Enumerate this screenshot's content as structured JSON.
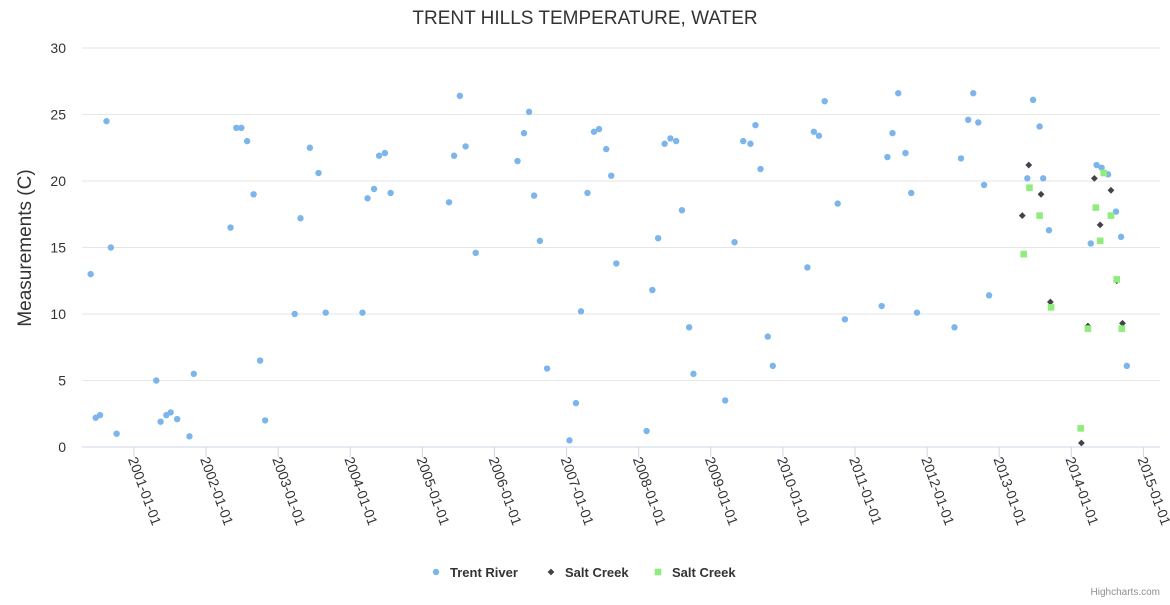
{
  "chart_data": {
    "type": "scatter",
    "title": "TRENT HILLS TEMPERATURE, WATER",
    "xlabel": "",
    "ylabel": "Measurements (C)",
    "ylim": [
      0,
      30
    ],
    "yticks": [
      0,
      5,
      10,
      15,
      20,
      25,
      30
    ],
    "xlim": [
      2000.28,
      2015.23
    ],
    "xticks": [
      {
        "label": "2001-01-01",
        "x": 2001.0
      },
      {
        "label": "2002-01-01",
        "x": 2002.0
      },
      {
        "label": "2003-01-01",
        "x": 2003.0
      },
      {
        "label": "2004-01-01",
        "x": 2004.0
      },
      {
        "label": "2005-01-01",
        "x": 2005.0
      },
      {
        "label": "2006-01-01",
        "x": 2006.0
      },
      {
        "label": "2007-01-01",
        "x": 2007.0
      },
      {
        "label": "2008-01-01",
        "x": 2008.0
      },
      {
        "label": "2009-01-01",
        "x": 2009.0
      },
      {
        "label": "2010-01-01",
        "x": 2010.0
      },
      {
        "label": "2011-01-01",
        "x": 2011.0
      },
      {
        "label": "2012-01-01",
        "x": 2012.0
      },
      {
        "label": "2013-01-01",
        "x": 2013.0
      },
      {
        "label": "2014-01-01",
        "x": 2014.0
      },
      {
        "label": "2015-01-01",
        "x": 2015.0
      }
    ],
    "series": [
      {
        "name": "Trent River",
        "symbol": "circle",
        "color": "#7cb5ec",
        "points": [
          [
            2000.4,
            13.0
          ],
          [
            2000.47,
            2.2
          ],
          [
            2000.53,
            2.4
          ],
          [
            2000.62,
            24.5
          ],
          [
            2000.68,
            15.0
          ],
          [
            2000.76,
            1.0
          ],
          [
            2001.31,
            5.0
          ],
          [
            2001.37,
            1.9
          ],
          [
            2001.45,
            2.4
          ],
          [
            2001.51,
            2.6
          ],
          [
            2001.6,
            2.1
          ],
          [
            2001.77,
            0.8
          ],
          [
            2001.83,
            5.5
          ],
          [
            2002.34,
            16.5
          ],
          [
            2002.42,
            24.0
          ],
          [
            2002.49,
            24.0
          ],
          [
            2002.57,
            23.0
          ],
          [
            2002.66,
            19.0
          ],
          [
            2002.75,
            6.5
          ],
          [
            2002.82,
            2.0
          ],
          [
            2003.23,
            10.0
          ],
          [
            2003.31,
            17.2
          ],
          [
            2003.44,
            22.5
          ],
          [
            2003.56,
            20.6
          ],
          [
            2003.66,
            10.1
          ],
          [
            2004.17,
            10.1
          ],
          [
            2004.24,
            18.7
          ],
          [
            2004.33,
            19.4
          ],
          [
            2004.4,
            21.9
          ],
          [
            2004.48,
            22.1
          ],
          [
            2004.56,
            19.1
          ],
          [
            2005.37,
            18.4
          ],
          [
            2005.44,
            21.9
          ],
          [
            2005.52,
            26.4
          ],
          [
            2005.6,
            22.6
          ],
          [
            2005.74,
            14.6
          ],
          [
            2006.32,
            21.5
          ],
          [
            2006.41,
            23.6
          ],
          [
            2006.48,
            25.2
          ],
          [
            2006.55,
            18.9
          ],
          [
            2006.63,
            15.5
          ],
          [
            2006.73,
            5.9
          ],
          [
            2007.04,
            0.5
          ],
          [
            2007.13,
            3.3
          ],
          [
            2007.2,
            10.2
          ],
          [
            2007.29,
            19.1
          ],
          [
            2007.38,
            23.7
          ],
          [
            2007.45,
            23.9
          ],
          [
            2007.55,
            22.4
          ],
          [
            2007.62,
            20.4
          ],
          [
            2007.69,
            13.8
          ],
          [
            2008.11,
            1.2
          ],
          [
            2008.19,
            11.8
          ],
          [
            2008.27,
            15.7
          ],
          [
            2008.36,
            22.8
          ],
          [
            2008.44,
            23.2
          ],
          [
            2008.52,
            23.0
          ],
          [
            2008.6,
            17.8
          ],
          [
            2008.7,
            9.0
          ],
          [
            2008.76,
            5.5
          ],
          [
            2009.2,
            3.5
          ],
          [
            2009.33,
            15.4
          ],
          [
            2009.45,
            23.0
          ],
          [
            2009.55,
            22.8
          ],
          [
            2009.62,
            24.2
          ],
          [
            2009.69,
            20.9
          ],
          [
            2009.79,
            8.3
          ],
          [
            2009.86,
            6.1
          ],
          [
            2010.34,
            13.5
          ],
          [
            2010.43,
            23.7
          ],
          [
            2010.5,
            23.4
          ],
          [
            2010.58,
            26.0
          ],
          [
            2010.76,
            18.3
          ],
          [
            2010.86,
            9.6
          ],
          [
            2011.37,
            10.6
          ],
          [
            2011.45,
            21.8
          ],
          [
            2011.52,
            23.6
          ],
          [
            2011.6,
            26.6
          ],
          [
            2011.7,
            22.1
          ],
          [
            2011.78,
            19.1
          ],
          [
            2011.86,
            10.1
          ],
          [
            2012.38,
            9.0
          ],
          [
            2012.47,
            21.7
          ],
          [
            2012.57,
            24.6
          ],
          [
            2012.64,
            26.6
          ],
          [
            2012.71,
            24.4
          ],
          [
            2012.79,
            19.7
          ],
          [
            2012.86,
            11.4
          ],
          [
            2013.39,
            20.2
          ],
          [
            2013.47,
            26.1
          ],
          [
            2013.56,
            24.1
          ],
          [
            2013.61,
            20.2
          ],
          [
            2013.69,
            16.3
          ],
          [
            2014.27,
            15.3
          ],
          [
            2014.35,
            21.2
          ],
          [
            2014.42,
            21.0
          ],
          [
            2014.51,
            20.5
          ],
          [
            2014.62,
            17.7
          ],
          [
            2014.69,
            15.8
          ],
          [
            2014.77,
            6.1
          ]
        ]
      },
      {
        "name": "Salt Creek",
        "symbol": "diamond",
        "color": "#434348",
        "points": [
          [
            2013.32,
            17.4
          ],
          [
            2013.41,
            21.2
          ],
          [
            2013.58,
            19.0
          ],
          [
            2013.71,
            10.9
          ],
          [
            2014.14,
            0.3
          ],
          [
            2014.23,
            9.1
          ],
          [
            2014.32,
            20.2
          ],
          [
            2014.4,
            16.7
          ],
          [
            2014.55,
            19.3
          ],
          [
            2014.63,
            12.5
          ],
          [
            2014.71,
            9.3
          ]
        ]
      },
      {
        "name": "Salt Creek",
        "symbol": "square",
        "color": "#90ed7d",
        "points": [
          [
            2013.34,
            14.5
          ],
          [
            2013.42,
            19.5
          ],
          [
            2013.56,
            17.4
          ],
          [
            2013.72,
            10.5
          ],
          [
            2014.13,
            1.4
          ],
          [
            2014.23,
            8.9
          ],
          [
            2014.34,
            18.0
          ],
          [
            2014.4,
            15.5
          ],
          [
            2014.45,
            20.6
          ],
          [
            2014.55,
            17.4
          ],
          [
            2014.63,
            12.6
          ],
          [
            2014.7,
            8.9
          ]
        ]
      }
    ],
    "legend_position": "bottom-center",
    "credits": "Highcharts.com"
  }
}
